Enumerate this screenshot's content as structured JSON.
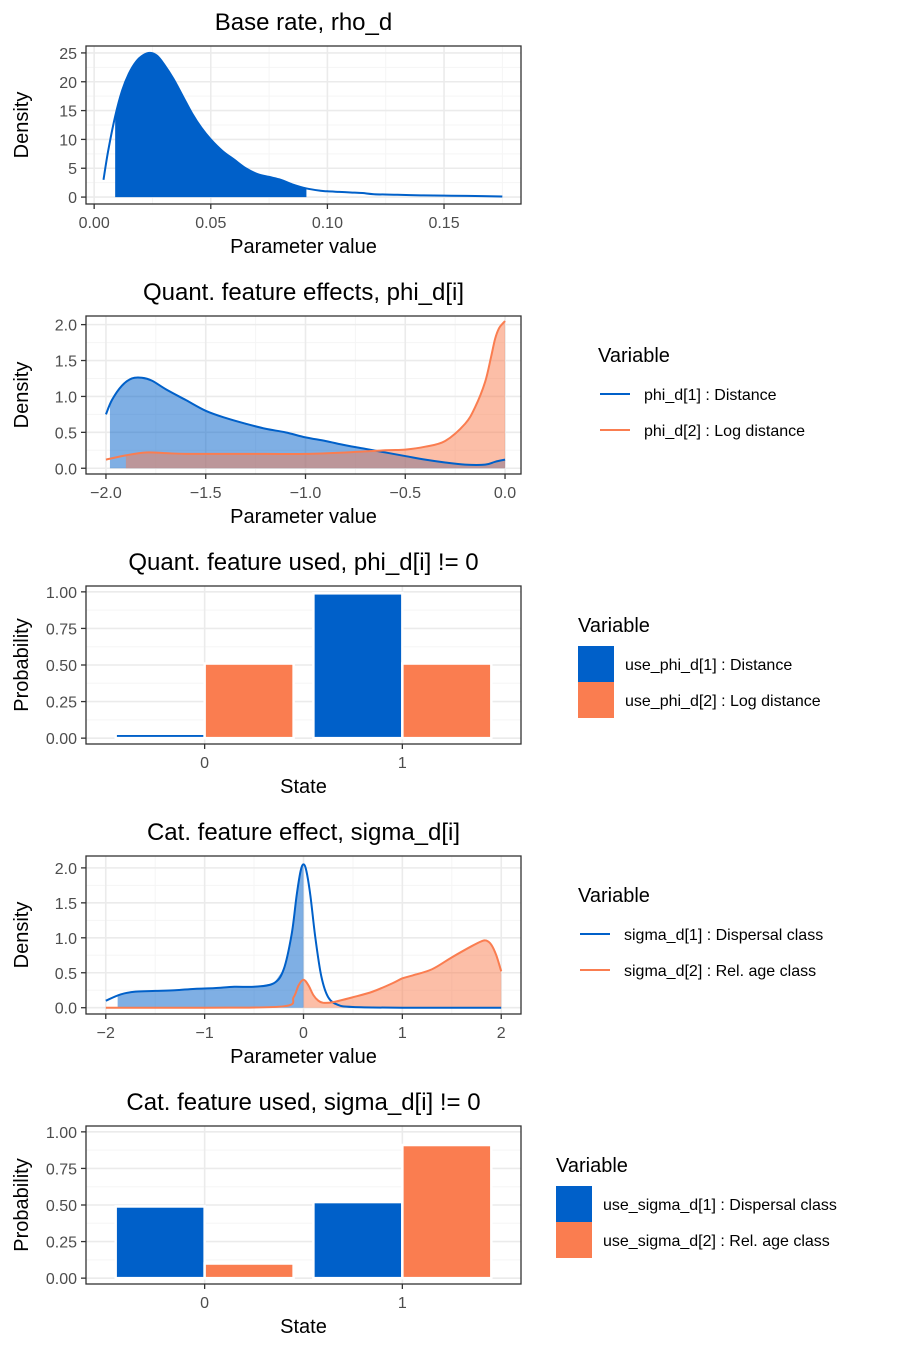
{
  "colors": {
    "series1": "#0060C9",
    "series2": "#FA7D50",
    "grid_major": "#EBEBEB",
    "grid_minor": "#F5F5F5",
    "axis_text": "#4D4D4D"
  },
  "chart_data": [
    {
      "type": "area",
      "title": "Base rate, rho_d",
      "xlabel": "Parameter value",
      "ylabel": "Density",
      "xlim": [
        -0.0035,
        0.183
      ],
      "ylim": [
        -1.2,
        26.2
      ],
      "xticks": [
        0.0,
        0.05,
        0.1,
        0.15
      ],
      "xtick_labels": [
        "0.00",
        "0.05",
        "0.10",
        "0.15"
      ],
      "yticks": [
        0,
        5,
        10,
        15,
        20,
        25
      ],
      "ytick_labels": [
        "0",
        "5",
        "10",
        "15",
        "20",
        "25"
      ],
      "grid": true,
      "legend": null,
      "series": [
        {
          "fill_range": [
            0.009,
            0.091
          ],
          "x": [
            0.004,
            0.006,
            0.009,
            0.012,
            0.015,
            0.018,
            0.021,
            0.024,
            0.027,
            0.03,
            0.034,
            0.038,
            0.042,
            0.046,
            0.05,
            0.055,
            0.06,
            0.065,
            0.07,
            0.075,
            0.08,
            0.085,
            0.091,
            0.097,
            0.1,
            0.105,
            0.11,
            0.115,
            0.12,
            0.13,
            0.14,
            0.15,
            0.16,
            0.175
          ],
          "y": [
            3.0,
            8.0,
            14.0,
            18.5,
            21.5,
            23.5,
            24.6,
            25.0,
            24.5,
            23.0,
            20.5,
            17.5,
            14.5,
            12.0,
            10.0,
            8.0,
            6.5,
            5.0,
            4.0,
            3.5,
            3.0,
            2.2,
            1.5,
            1.1,
            1.0,
            0.9,
            0.8,
            0.7,
            0.5,
            0.4,
            0.3,
            0.25,
            0.2,
            0.1
          ]
        }
      ]
    },
    {
      "type": "area",
      "title": "Quant. feature effects, phi_d[i]",
      "xlabel": "Parameter value",
      "ylabel": "Density",
      "xlim": [
        -2.1,
        0.08
      ],
      "ylim": [
        -0.08,
        2.12
      ],
      "xticks": [
        -2.0,
        -1.5,
        -1.0,
        -0.5,
        0.0
      ],
      "xtick_labels": [
        "−2.0",
        "−1.5",
        "−1.0",
        "−0.5",
        "0.0"
      ],
      "yticks": [
        0.0,
        0.5,
        1.0,
        1.5,
        2.0
      ],
      "ytick_labels": [
        "0.0",
        "0.5",
        "1.0",
        "1.5",
        "2.0"
      ],
      "grid": true,
      "legend": {
        "position": "right",
        "title": "Variable",
        "kind": "line"
      },
      "series": [
        {
          "name": "phi_d[1] : Distance",
          "fill_range": [
            -1.98,
            0.0
          ],
          "x": [
            -2.0,
            -1.97,
            -1.92,
            -1.87,
            -1.82,
            -1.77,
            -1.7,
            -1.6,
            -1.5,
            -1.4,
            -1.3,
            -1.2,
            -1.1,
            -1.0,
            -0.9,
            -0.8,
            -0.7,
            -0.6,
            -0.5,
            -0.4,
            -0.3,
            -0.2,
            -0.1,
            -0.05,
            0.0
          ],
          "y": [
            0.75,
            0.95,
            1.15,
            1.25,
            1.26,
            1.22,
            1.1,
            0.95,
            0.8,
            0.7,
            0.62,
            0.55,
            0.5,
            0.43,
            0.38,
            0.32,
            0.27,
            0.22,
            0.17,
            0.12,
            0.08,
            0.05,
            0.05,
            0.09,
            0.12
          ]
        },
        {
          "name": "phi_d[2] : Log distance",
          "fill_range": [
            -1.9,
            0.0
          ],
          "x": [
            -2.0,
            -1.9,
            -1.8,
            -1.7,
            -1.6,
            -1.4,
            -1.2,
            -1.0,
            -0.8,
            -0.6,
            -0.5,
            -0.4,
            -0.3,
            -0.2,
            -0.15,
            -0.1,
            -0.07,
            -0.05,
            -0.03,
            -0.01,
            0.0
          ],
          "y": [
            0.12,
            0.18,
            0.22,
            0.21,
            0.2,
            0.2,
            0.2,
            0.2,
            0.22,
            0.25,
            0.26,
            0.3,
            0.38,
            0.62,
            0.85,
            1.2,
            1.55,
            1.8,
            1.95,
            2.02,
            2.05
          ]
        }
      ]
    },
    {
      "type": "bar",
      "title": "Quant. feature used, phi_d[i] != 0",
      "xlabel": "State",
      "ylabel": "Probability",
      "categories": [
        "0",
        "1"
      ],
      "ylim": [
        -0.04,
        1.04
      ],
      "yticks": [
        0.0,
        0.25,
        0.5,
        0.75,
        1.0
      ],
      "ytick_labels": [
        "0.00",
        "0.25",
        "0.50",
        "0.75",
        "1.00"
      ],
      "grid": true,
      "legend": {
        "position": "right",
        "title": "Variable",
        "kind": "box"
      },
      "series": [
        {
          "name": "use_phi_d[1] : Distance",
          "values": [
            0.03,
            0.99
          ]
        },
        {
          "name": "use_phi_d[2] : Log distance",
          "values": [
            0.51,
            0.51
          ]
        }
      ]
    },
    {
      "type": "area",
      "title": "Cat. feature effect, sigma_d[i]",
      "xlabel": "Parameter value",
      "ylabel": "Density",
      "xlim": [
        -2.2,
        2.2
      ],
      "ylim": [
        -0.09,
        2.17
      ],
      "xticks": [
        -2,
        -1,
        0,
        1,
        2
      ],
      "xtick_labels": [
        "−2",
        "−1",
        "0",
        "1",
        "2"
      ],
      "yticks": [
        0.0,
        0.5,
        1.0,
        1.5,
        2.0
      ],
      "ytick_labels": [
        "0.0",
        "0.5",
        "1.0",
        "1.5",
        "2.0"
      ],
      "grid": true,
      "legend": {
        "position": "right",
        "title": "Variable",
        "kind": "line"
      },
      "series": [
        {
          "name": "sigma_d[1] : Dispersal class",
          "fill_range": [
            -1.88,
            0.0
          ],
          "x": [
            -2.0,
            -1.85,
            -1.7,
            -1.5,
            -1.3,
            -1.1,
            -0.9,
            -0.7,
            -0.5,
            -0.3,
            -0.2,
            -0.12,
            -0.07,
            -0.03,
            0.0,
            0.03,
            0.07,
            0.12,
            0.18,
            0.25,
            0.35,
            0.5,
            1.0,
            2.0
          ],
          "y": [
            0.1,
            0.19,
            0.23,
            0.24,
            0.25,
            0.27,
            0.28,
            0.3,
            0.3,
            0.35,
            0.55,
            1.05,
            1.6,
            1.95,
            2.05,
            1.95,
            1.6,
            1.0,
            0.45,
            0.15,
            0.04,
            0.01,
            0.0,
            0.0
          ]
        },
        {
          "name": "sigma_d[2] : Rel. age class",
          "fill_range": [
            0.0,
            2.0
          ],
          "x": [
            -2.0,
            -1.0,
            -0.2,
            -0.1,
            -0.05,
            0.0,
            0.05,
            0.1,
            0.15,
            0.2,
            0.3,
            0.5,
            0.7,
            0.9,
            1.0,
            1.1,
            1.3,
            1.5,
            1.7,
            1.8,
            1.85,
            1.9,
            1.95,
            2.0
          ],
          "y": [
            0.0,
            0.0,
            0.02,
            0.15,
            0.32,
            0.4,
            0.32,
            0.18,
            0.1,
            0.07,
            0.08,
            0.15,
            0.23,
            0.35,
            0.42,
            0.46,
            0.55,
            0.72,
            0.88,
            0.95,
            0.96,
            0.9,
            0.75,
            0.52
          ]
        }
      ]
    },
    {
      "type": "bar",
      "title": "Cat. feature used, sigma_d[i] != 0",
      "xlabel": "State",
      "ylabel": "Probability",
      "categories": [
        "0",
        "1"
      ],
      "ylim": [
        -0.04,
        1.04
      ],
      "yticks": [
        0.0,
        0.25,
        0.5,
        0.75,
        1.0
      ],
      "ytick_labels": [
        "0.00",
        "0.25",
        "0.50",
        "0.75",
        "1.00"
      ],
      "grid": true,
      "legend": {
        "position": "right",
        "title": "Variable",
        "kind": "box"
      },
      "series": [
        {
          "name": "use_sigma_d[1] : Dispersal class",
          "values": [
            0.49,
            0.52
          ]
        },
        {
          "name": "use_sigma_d[2] : Rel. age class",
          "values": [
            0.1,
            0.91
          ]
        }
      ]
    }
  ]
}
